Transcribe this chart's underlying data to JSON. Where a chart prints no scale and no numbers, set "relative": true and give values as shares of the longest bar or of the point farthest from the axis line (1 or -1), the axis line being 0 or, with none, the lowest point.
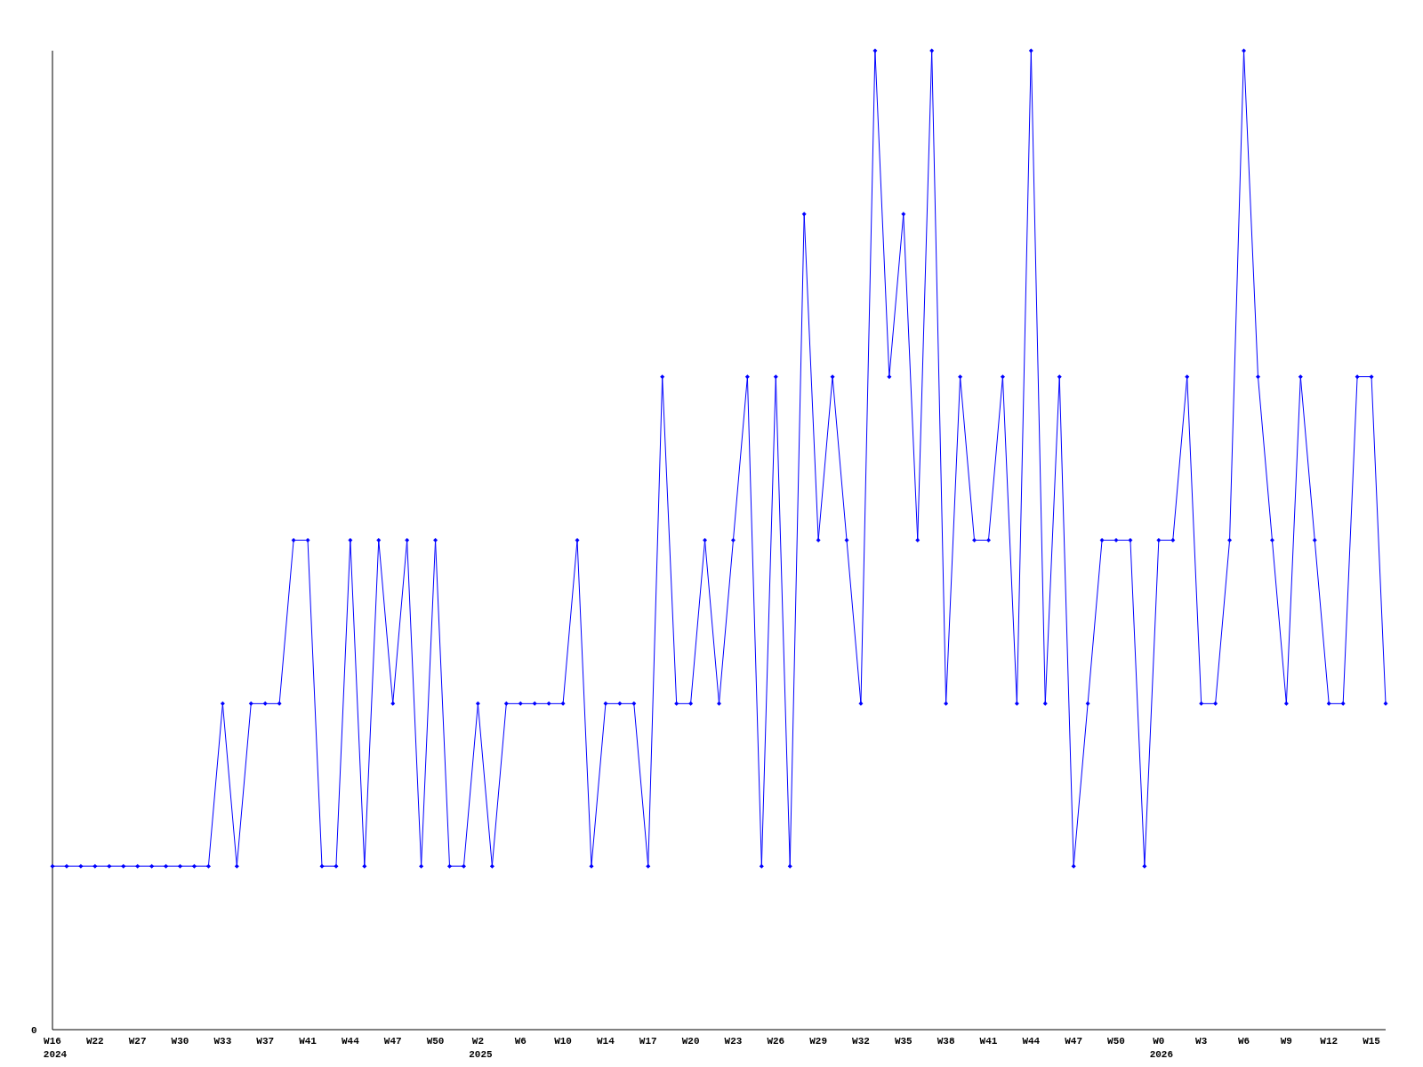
{
  "chart_data": {
    "type": "line",
    "relative": true,
    "marker": "diamond",
    "line_style": "solid",
    "annotations": [
      "0"
    ],
    "categories": [
      "W16\n2024",
      null,
      null,
      "W22",
      null,
      null,
      "W27",
      null,
      null,
      "W30",
      null,
      null,
      "W33",
      null,
      null,
      "W37",
      null,
      null,
      "W41",
      null,
      null,
      "W44",
      null,
      null,
      "W47",
      null,
      null,
      "W50",
      null,
      null,
      "W2\n2025",
      null,
      null,
      "W6",
      null,
      null,
      "W10",
      null,
      null,
      "W14",
      null,
      null,
      "W17",
      null,
      null,
      "W20",
      null,
      null,
      "W23",
      null,
      null,
      "W26",
      null,
      null,
      "W29",
      null,
      null,
      "W32",
      null,
      null,
      "W35",
      null,
      null,
      "W38",
      null,
      null,
      "W41",
      null,
      null,
      "W44",
      null,
      null,
      "W47",
      null,
      null,
      "W50",
      null,
      null,
      "W0\n2026",
      null,
      null,
      "W3",
      null,
      null,
      "W6",
      null,
      null,
      "W9",
      null,
      null,
      "W12",
      null,
      null,
      "W15",
      null
    ],
    "series": [
      {
        "color": "#0000ff",
        "values": [
          0.167,
          0.167,
          0.167,
          0.167,
          0.167,
          0.167,
          0.167,
          0.167,
          0.167,
          0.167,
          0.167,
          0.167,
          0.333,
          0.167,
          0.333,
          0.333,
          0.333,
          0.5,
          0.5,
          0.167,
          0.167,
          0.5,
          0.167,
          0.5,
          0.333,
          0.5,
          0.167,
          0.5,
          0.167,
          0.167,
          0.333,
          0.167,
          0.333,
          0.333,
          0.333,
          0.333,
          0.333,
          0.5,
          0.167,
          0.333,
          0.333,
          0.333,
          0.167,
          0.667,
          0.333,
          0.333,
          0.5,
          0.333,
          0.5,
          0.667,
          0.167,
          0.667,
          0.167,
          0.833,
          0.5,
          0.667,
          0.5,
          0.333,
          1,
          0.667,
          0.833,
          0.5,
          1,
          0.333,
          0.667,
          0.5,
          0.5,
          0.667,
          0.333,
          1,
          0.333,
          0.667,
          0.167,
          0.333,
          0.5,
          0.5,
          0.5,
          0.167,
          0.5,
          0.5,
          0.667,
          0.333,
          0.333,
          0.5,
          1,
          0.667,
          0.5,
          0.333,
          0.667,
          0.5,
          0.333,
          0.333,
          0.667,
          0.667,
          0.333
        ]
      }
    ]
  }
}
